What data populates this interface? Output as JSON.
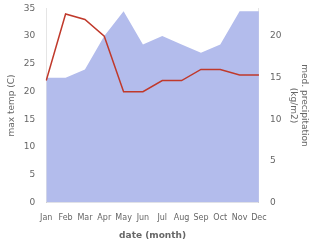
{
  "chart_data": {
    "type": "line",
    "categories": [
      "Jan",
      "Feb",
      "Mar",
      "Apr",
      "May",
      "Jun",
      "Jul",
      "Aug",
      "Sep",
      "Oct",
      "Nov",
      "Dec"
    ],
    "xlabel": "date (month)",
    "ylabel": "max temp (C)",
    "y2label": "med. precipitation\n(kg/m2)",
    "series": [
      {
        "type": "area",
        "color": "#b3bcec",
        "axis": "y2",
        "values": [
          15,
          15,
          16,
          20,
          23,
          19,
          20,
          19,
          18,
          19,
          23,
          23
        ]
      },
      {
        "type": "line",
        "color": "#c0392b",
        "values": [
          22,
          34,
          33,
          30,
          20,
          20,
          22,
          22,
          24,
          24,
          23,
          23
        ]
      }
    ],
    "ylim": [
      0,
      35
    ],
    "yticks": [
      0,
      5,
      10,
      15,
      20,
      25,
      30,
      35
    ],
    "y2lim": [
      0,
      23.33
    ],
    "y2ticks": [
      0,
      5,
      10,
      15,
      20
    ],
    "grid": false,
    "legend": false
  }
}
